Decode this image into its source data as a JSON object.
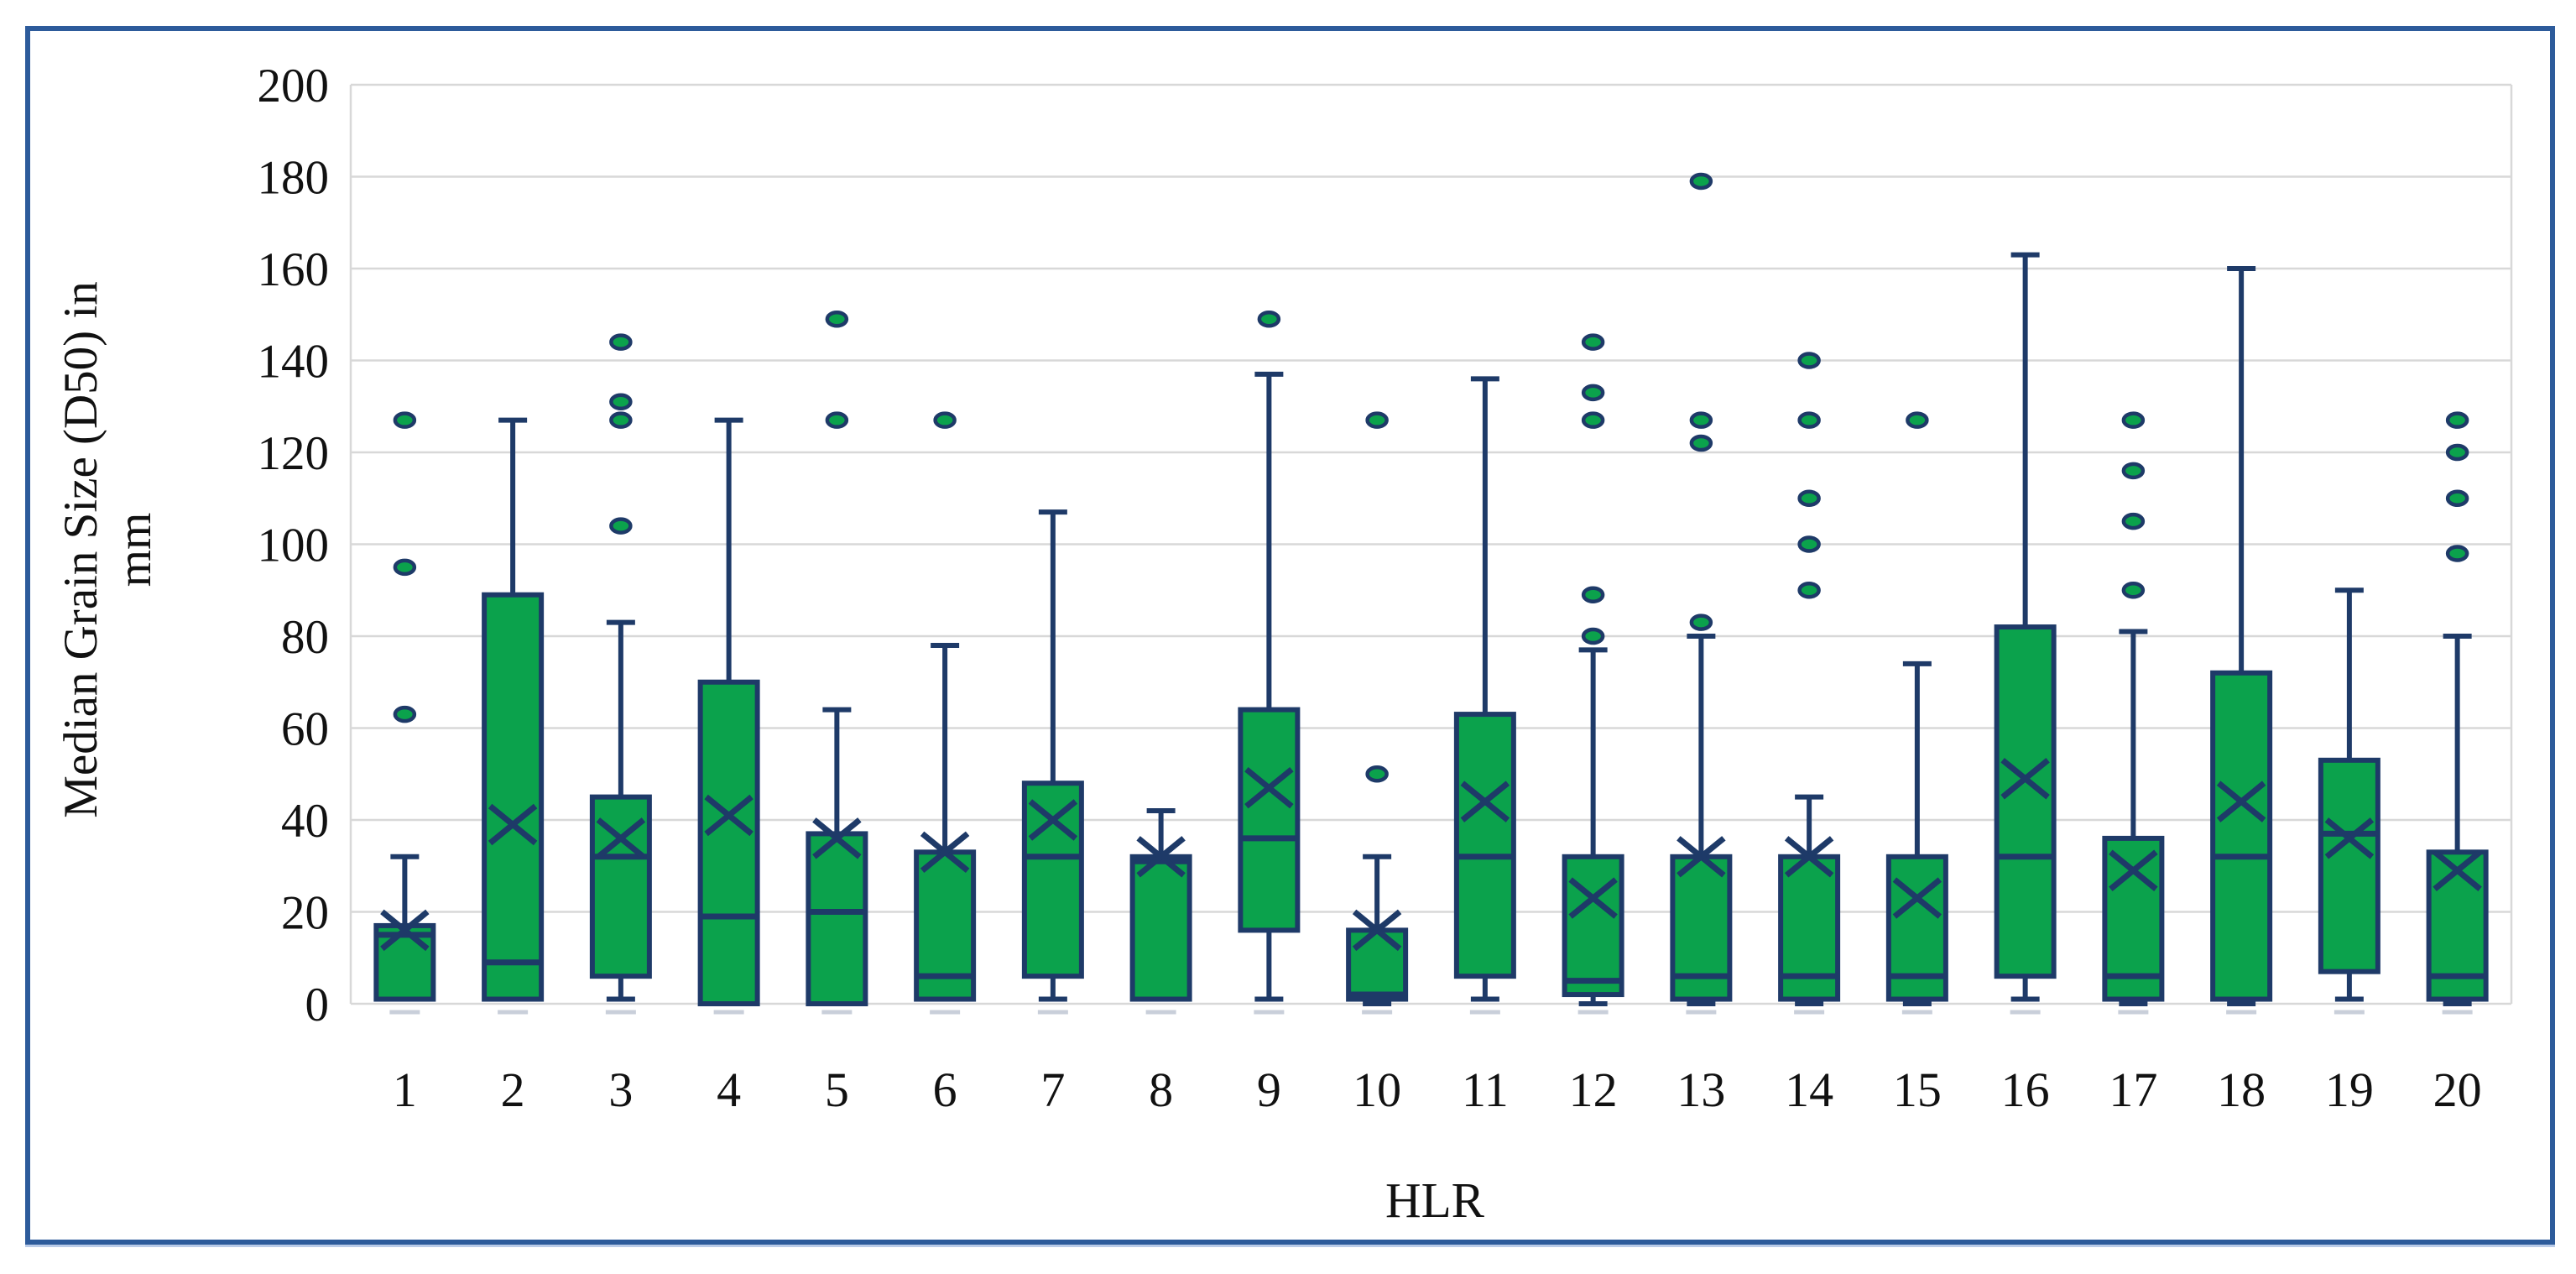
{
  "figure": {
    "border_color": "#2d5b9b",
    "background_color": "#ffffff",
    "gridline_color": "#d8d8d8",
    "box_fill_color": "#0ba24c",
    "box_stroke_color": "#1e3a68",
    "tick_dash_color": "#c9cfda",
    "text_color": "#111111"
  },
  "y_axis": {
    "title_line1": "Median Grain Size (D50) in",
    "title_line2": "mm",
    "tick_labels": [
      "0",
      "20",
      "40",
      "60",
      "80",
      "100",
      "120",
      "140",
      "160",
      "180",
      "200"
    ],
    "min": 0,
    "max": 200,
    "tick_step": 20
  },
  "x_axis": {
    "title": "HLR",
    "tick_labels": [
      "1",
      "2",
      "3",
      "4",
      "5",
      "6",
      "7",
      "8",
      "9",
      "10",
      "11",
      "12",
      "13",
      "14",
      "15",
      "16",
      "17",
      "18",
      "19",
      "20"
    ]
  },
  "chart_data": {
    "type": "box",
    "title": "",
    "xlabel": "HLR",
    "ylabel": "Median Grain Size (D50) in mm",
    "ylim": [
      0,
      200
    ],
    "grid": true,
    "legend": "none",
    "categories": [
      "1",
      "2",
      "3",
      "4",
      "5",
      "6",
      "7",
      "8",
      "9",
      "10",
      "11",
      "12",
      "13",
      "14",
      "15",
      "16",
      "17",
      "18",
      "19",
      "20"
    ],
    "boxes": [
      {
        "category": "1",
        "whisker_low": 1,
        "q1": 1,
        "median": 15,
        "q3": 17,
        "whisker_high": 32,
        "mean": 16,
        "outliers": [
          63,
          95,
          127
        ]
      },
      {
        "category": "2",
        "whisker_low": 1,
        "q1": 1,
        "median": 9,
        "q3": 89,
        "whisker_high": 127,
        "mean": 39,
        "outliers": []
      },
      {
        "category": "3",
        "whisker_low": 1,
        "q1": 6,
        "median": 32,
        "q3": 45,
        "whisker_high": 83,
        "mean": 36,
        "outliers": [
          104,
          127,
          131,
          144
        ]
      },
      {
        "category": "4",
        "whisker_low": 0,
        "q1": 0,
        "median": 19,
        "q3": 70,
        "whisker_high": 127,
        "mean": 41,
        "outliers": []
      },
      {
        "category": "5",
        "whisker_low": 0,
        "q1": 0,
        "median": 20,
        "q3": 37,
        "whisker_high": 64,
        "mean": 36,
        "outliers": [
          127,
          149
        ]
      },
      {
        "category": "6",
        "whisker_low": 1,
        "q1": 1,
        "median": 6,
        "q3": 33,
        "whisker_high": 78,
        "mean": 33,
        "outliers": [
          127
        ]
      },
      {
        "category": "7",
        "whisker_low": 1,
        "q1": 6,
        "median": 32,
        "q3": 48,
        "whisker_high": 107,
        "mean": 40,
        "outliers": []
      },
      {
        "category": "8",
        "whisker_low": 1,
        "q1": 1,
        "median": 31,
        "q3": 32,
        "whisker_high": 42,
        "mean": 32,
        "outliers": []
      },
      {
        "category": "9",
        "whisker_low": 1,
        "q1": 16,
        "median": 36,
        "q3": 64,
        "whisker_high": 137,
        "mean": 47,
        "outliers": [
          149
        ]
      },
      {
        "category": "10",
        "whisker_low": 0,
        "q1": 1,
        "median": 2,
        "q3": 16,
        "whisker_high": 32,
        "mean": 16,
        "outliers": [
          50,
          127
        ]
      },
      {
        "category": "11",
        "whisker_low": 1,
        "q1": 6,
        "median": 32,
        "q3": 63,
        "whisker_high": 136,
        "mean": 44,
        "outliers": []
      },
      {
        "category": "12",
        "whisker_low": 0,
        "q1": 2,
        "median": 5,
        "q3": 32,
        "whisker_high": 77,
        "mean": 23,
        "outliers": [
          80,
          89,
          127,
          133,
          144
        ]
      },
      {
        "category": "13",
        "whisker_low": 0,
        "q1": 1,
        "median": 6,
        "q3": 32,
        "whisker_high": 80,
        "mean": 32,
        "outliers": [
          83,
          122,
          127,
          179
        ]
      },
      {
        "category": "14",
        "whisker_low": 0,
        "q1": 1,
        "median": 6,
        "q3": 32,
        "whisker_high": 45,
        "mean": 32,
        "outliers": [
          90,
          100,
          110,
          127,
          140
        ]
      },
      {
        "category": "15",
        "whisker_low": 0,
        "q1": 1,
        "median": 6,
        "q3": 32,
        "whisker_high": 74,
        "mean": 23,
        "outliers": [
          127
        ]
      },
      {
        "category": "16",
        "whisker_low": 1,
        "q1": 6,
        "median": 32,
        "q3": 82,
        "whisker_high": 163,
        "mean": 49,
        "outliers": []
      },
      {
        "category": "17",
        "whisker_low": 0,
        "q1": 1,
        "median": 6,
        "q3": 36,
        "whisker_high": 81,
        "mean": 29,
        "outliers": [
          90,
          105,
          116,
          127
        ]
      },
      {
        "category": "18",
        "whisker_low": 0,
        "q1": 1,
        "median": 32,
        "q3": 72,
        "whisker_high": 160,
        "mean": 44,
        "outliers": []
      },
      {
        "category": "19",
        "whisker_low": 1,
        "q1": 7,
        "median": 37,
        "q3": 53,
        "whisker_high": 90,
        "mean": 36,
        "outliers": []
      },
      {
        "category": "20",
        "whisker_low": 0,
        "q1": 1,
        "median": 6,
        "q3": 33,
        "whisker_high": 80,
        "mean": 29,
        "outliers": [
          98,
          110,
          120,
          127
        ]
      }
    ]
  }
}
